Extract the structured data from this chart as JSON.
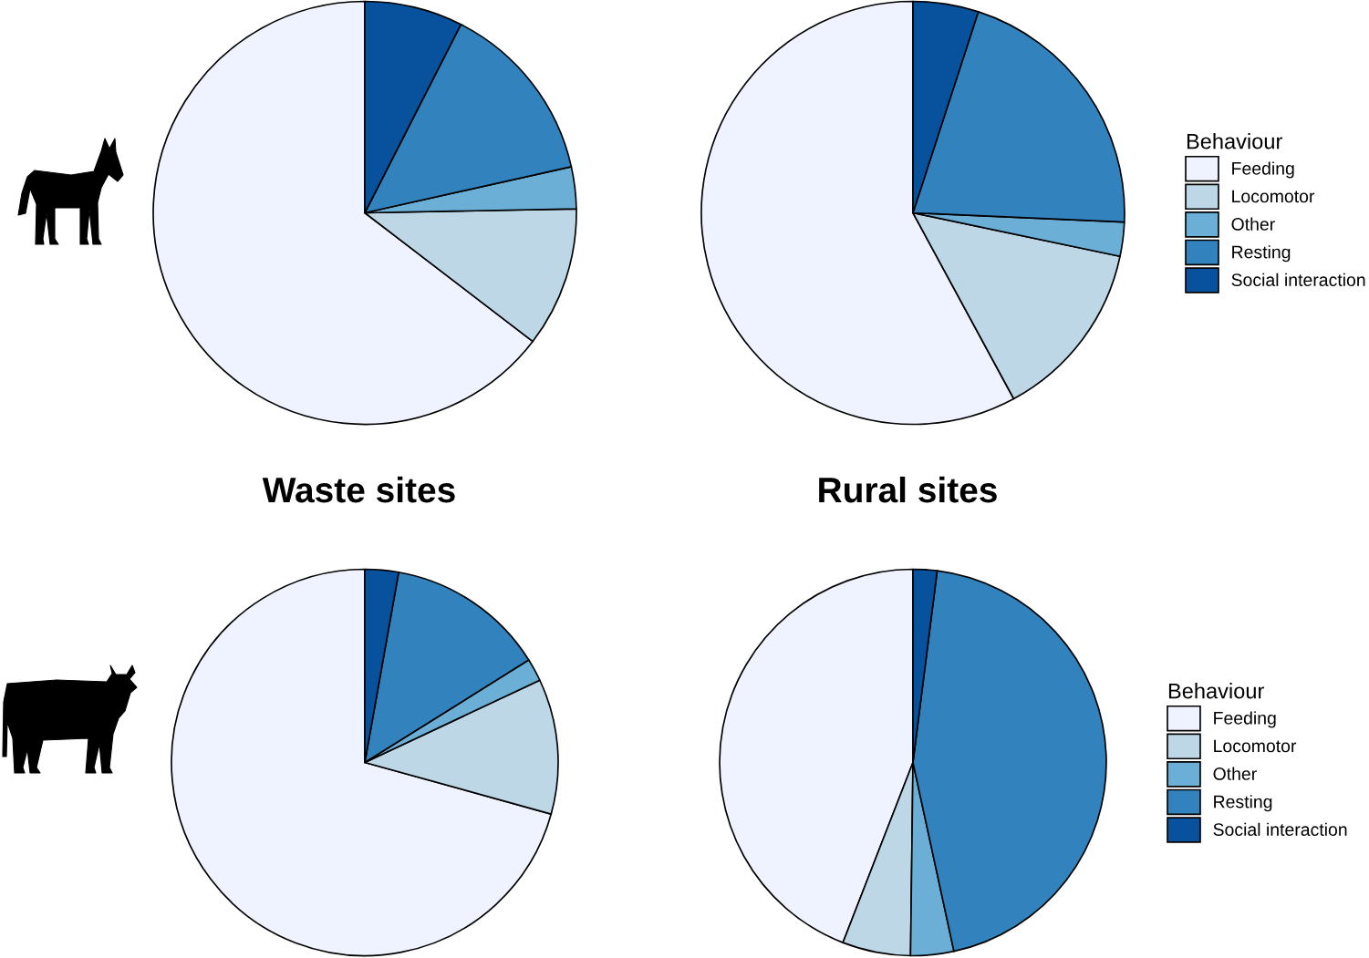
{
  "chart_data": [
    {
      "type": "pie",
      "categories": [
        "Feeding",
        "Locomotor",
        "Other",
        "Resting",
        "Social interaction"
      ],
      "colors": [
        "#eff3ff",
        "#bdd7e7",
        "#6baed6",
        "#3182bd",
        "#08519c"
      ],
      "series": [
        {
          "values": [
            64.6,
            10.7,
            3.2,
            14.0,
            7.5
          ]
        },
        {
          "values": [
            57.9,
            13.8,
            2.6,
            20.7,
            5.0
          ]
        }
      ],
      "legend": "right",
      "legend_title": "Behaviour"
    },
    {
      "type": "pie",
      "categories": [
        "Feeding",
        "Locomotor",
        "Other",
        "Resting",
        "Social interaction"
      ],
      "colors": [
        "#eff3ff",
        "#bdd7e7",
        "#6baed6",
        "#3182bd",
        "#08519c"
      ],
      "series": [
        {
          "name": "Waste sites",
          "values": [
            70.7,
            11.3,
            1.9,
            13.3,
            2.8
          ]
        },
        {
          "name": "Rural sites",
          "values": [
            44.1,
            5.7,
            3.6,
            44.6,
            2.0
          ]
        }
      ],
      "legend": "right",
      "legend_title": "Behaviour"
    }
  ]
}
